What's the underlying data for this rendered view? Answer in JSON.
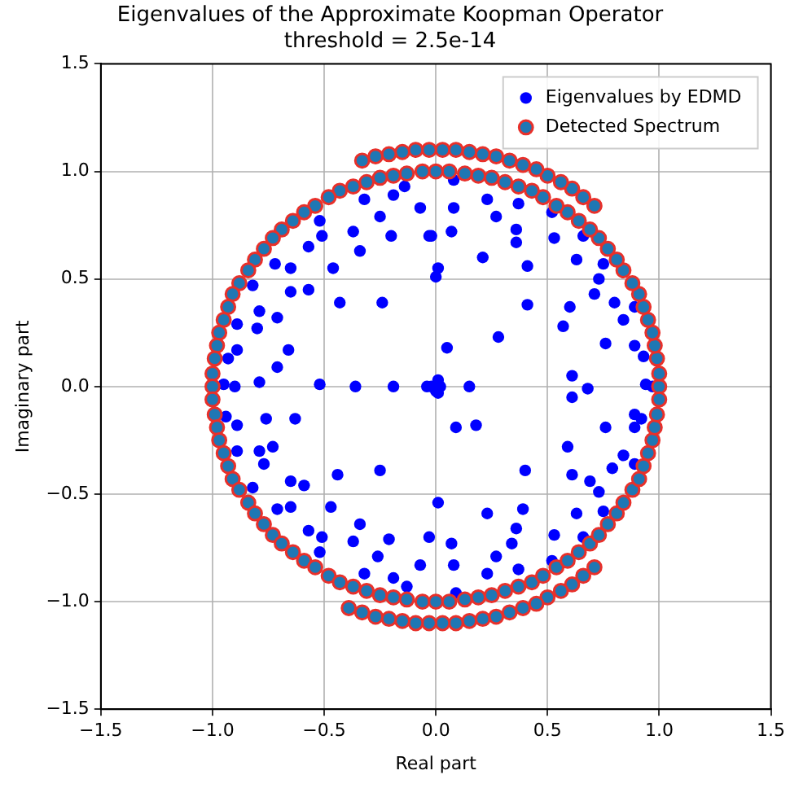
{
  "chart_data": {
    "type": "scatter",
    "title": "Eigenvalues of the Approximate Koopman Operator",
    "subtitle": "threshold = 2.5e-14",
    "xlabel": "Real part",
    "ylabel": "Imaginary part",
    "xlim": [
      -1.5,
      1.5
    ],
    "ylim": [
      -1.5,
      1.5
    ],
    "xticks": [
      {
        "value": -1.5,
        "label": "−1.5"
      },
      {
        "value": -1,
        "label": "−1.0"
      },
      {
        "value": -0.5,
        "label": "−0.5"
      },
      {
        "value": 0,
        "label": "0.0"
      },
      {
        "value": 0.5,
        "label": "0.5"
      },
      {
        "value": 1,
        "label": "1.0"
      },
      {
        "value": 1.5,
        "label": "1.5"
      }
    ],
    "yticks": [
      {
        "value": -1.5,
        "label": "−1.5"
      },
      {
        "value": -1,
        "label": "−1.0"
      },
      {
        "value": -0.5,
        "label": "−0.5"
      },
      {
        "value": 0,
        "label": "0.0"
      },
      {
        "value": 0.5,
        "label": "0.5"
      },
      {
        "value": 1,
        "label": "1.0"
      },
      {
        "value": 1.5,
        "label": "1.5"
      }
    ],
    "grid": true,
    "legend": "top right",
    "marker": "circle",
    "series": [
      {
        "name": "Eigenvalues by EDMD",
        "color": "#0000ff",
        "x": [
          -0.32,
          -0.19,
          -0.14,
          -0.07,
          -0.25,
          -0.52,
          -0.51,
          -0.37,
          -0.2,
          -0.03,
          -0.57,
          -0.34,
          -0.72,
          -0.65,
          -0.46,
          0.01,
          0,
          -0.82,
          -0.65,
          -0.57,
          -0.43,
          -0.24,
          -0.79,
          -0.8,
          -0.71,
          -0.89,
          -0.89,
          -0.93,
          -0.66,
          -0.71,
          -0.95,
          -0.9,
          -0.79,
          -0.52,
          -0.36,
          -0.19,
          -0.04,
          0.01,
          0.08,
          0.08,
          0.23,
          0.37,
          0.27,
          0.52,
          -0.02,
          0.07,
          0.36,
          0.36,
          0.53,
          0.66,
          0.21,
          0.41,
          0.63,
          0.75,
          0.73,
          0.71,
          0.8,
          0.41,
          0.6,
          0.89,
          0.57,
          0.84,
          0.28,
          0.05,
          0.76,
          0.89,
          0.93,
          0.61,
          0.15,
          0.68,
          0.94,
          0.97,
          -0.02,
          0.02,
          0,
          0.01,
          -0.94,
          -0.89,
          -0.76,
          -0.63,
          -0.89,
          -0.79,
          -0.73,
          -0.77,
          -0.44,
          -0.25,
          -0.65,
          -0.59,
          -0.82,
          -0.71,
          -0.65,
          -0.47,
          0.01,
          -0.34,
          -0.57,
          -0.51,
          -0.37,
          -0.21,
          -0.03,
          -0.52,
          -0.26,
          -0.07,
          -0.32,
          -0.19,
          -0.13,
          0.61,
          0.09,
          0.18,
          0.76,
          0.89,
          0.92,
          0.89,
          0.59,
          0.4,
          0.61,
          0.84,
          0.79,
          0.89,
          0.69,
          0.73,
          0.23,
          0.39,
          0.63,
          0.75,
          0.07,
          0.36,
          0.34,
          0.53,
          0.66,
          0.27,
          0.08,
          0.23,
          0.37,
          0.52,
          0.09
        ],
        "values": [
          0.87,
          0.89,
          0.93,
          0.83,
          0.79,
          0.77,
          0.7,
          0.72,
          0.7,
          0.7,
          0.65,
          0.63,
          0.57,
          0.55,
          0.55,
          0.55,
          0.51,
          0.47,
          0.44,
          0.45,
          0.39,
          0.39,
          0.35,
          0.27,
          0.32,
          0.29,
          0.17,
          0.13,
          0.17,
          0.09,
          0.01,
          0,
          0.02,
          0.01,
          0,
          0,
          0,
          0.03,
          0.96,
          0.83,
          0.87,
          0.85,
          0.79,
          0.81,
          0.7,
          0.72,
          0.73,
          0.67,
          0.69,
          0.7,
          0.6,
          0.56,
          0.59,
          0.57,
          0.5,
          0.43,
          0.39,
          0.38,
          0.37,
          0.37,
          0.28,
          0.31,
          0.23,
          0.18,
          0.2,
          0.19,
          0.14,
          0.05,
          0,
          -0.01,
          0.01,
          0,
          0,
          0,
          -0.02,
          -0.03,
          -0.14,
          -0.18,
          -0.15,
          -0.15,
          -0.3,
          -0.3,
          -0.28,
          -0.36,
          -0.41,
          -0.39,
          -0.44,
          -0.46,
          -0.47,
          -0.57,
          -0.56,
          -0.56,
          -0.54,
          -0.64,
          -0.67,
          -0.7,
          -0.72,
          -0.71,
          -0.7,
          -0.77,
          -0.79,
          -0.83,
          -0.87,
          -0.89,
          -0.93,
          -0.05,
          -0.19,
          -0.18,
          -0.19,
          -0.13,
          -0.15,
          -0.19,
          -0.28,
          -0.39,
          -0.41,
          -0.32,
          -0.38,
          -0.36,
          -0.44,
          -0.49,
          -0.59,
          -0.57,
          -0.59,
          -0.58,
          -0.73,
          -0.66,
          -0.73,
          -0.69,
          -0.7,
          -0.79,
          -0.83,
          -0.87,
          -0.85,
          -0.81,
          -0.96
        ]
      },
      {
        "name": "Detected Spectrum",
        "color": "#1f77b4",
        "x": [
          1,
          1,
          0.99,
          0.98,
          0.97,
          0.95,
          0.93,
          0.91,
          0.88,
          0.84,
          0.81,
          0.77,
          0.73,
          0.69,
          0.64,
          0.59,
          0.54,
          0.48,
          0.43,
          0.37,
          0.31,
          0.25,
          0.19,
          0.13,
          0.06,
          0,
          -0.06,
          -0.13,
          -0.19,
          -0.25,
          -0.31,
          -0.37,
          -0.43,
          -0.48,
          -0.54,
          -0.59,
          -0.64,
          -0.69,
          -0.73,
          -0.77,
          -0.81,
          -0.84,
          -0.88,
          -0.91,
          -0.93,
          -0.95,
          -0.97,
          -0.98,
          -0.99,
          -1,
          -1,
          -1,
          -0.99,
          -0.98,
          -0.97,
          -0.95,
          -0.93,
          -0.91,
          -0.88,
          -0.84,
          -0.81,
          -0.77,
          -0.73,
          -0.69,
          -0.64,
          -0.59,
          -0.54,
          -0.48,
          -0.43,
          -0.37,
          -0.31,
          -0.25,
          -0.19,
          -0.13,
          -0.06,
          0,
          0.06,
          0.13,
          0.19,
          0.25,
          0.31,
          0.37,
          0.43,
          0.48,
          0.54,
          0.59,
          0.64,
          0.69,
          0.73,
          0.77,
          0.81,
          0.84,
          0.88,
          0.91,
          0.93,
          0.95,
          0.97,
          0.98,
          0.99,
          1,
          0.71,
          0.66,
          0.61,
          0.56,
          0.5,
          0.45,
          0.39,
          0.33,
          0.27,
          0.21,
          0.15,
          0.09,
          0.03,
          -0.03,
          -0.09,
          -0.15,
          -0.21,
          -0.27,
          -0.33,
          0.71,
          0.66,
          0.61,
          0.56,
          0.5,
          0.45,
          0.39,
          0.33,
          0.27,
          0.21,
          0.15,
          0.09,
          0.03,
          -0.03,
          -0.09,
          -0.15,
          -0.21,
          -0.27,
          -0.33,
          -0.39
        ],
        "values": [
          0,
          0.06,
          0.13,
          0.19,
          0.25,
          0.31,
          0.37,
          0.43,
          0.48,
          0.54,
          0.59,
          0.64,
          0.69,
          0.73,
          0.77,
          0.81,
          0.84,
          0.88,
          0.91,
          0.93,
          0.95,
          0.97,
          0.98,
          0.99,
          1,
          1,
          1,
          0.99,
          0.98,
          0.97,
          0.95,
          0.93,
          0.91,
          0.88,
          0.84,
          0.81,
          0.77,
          0.73,
          0.69,
          0.64,
          0.59,
          0.54,
          0.48,
          0.43,
          0.37,
          0.31,
          0.25,
          0.19,
          0.13,
          0.06,
          0,
          -0.06,
          -0.13,
          -0.19,
          -0.25,
          -0.31,
          -0.37,
          -0.43,
          -0.48,
          -0.54,
          -0.59,
          -0.64,
          -0.69,
          -0.73,
          -0.77,
          -0.81,
          -0.84,
          -0.88,
          -0.91,
          -0.93,
          -0.95,
          -0.97,
          -0.98,
          -0.99,
          -1,
          -1,
          -1,
          -0.99,
          -0.98,
          -0.97,
          -0.95,
          -0.93,
          -0.91,
          -0.88,
          -0.84,
          -0.81,
          -0.77,
          -0.73,
          -0.69,
          -0.64,
          -0.59,
          -0.54,
          -0.48,
          -0.43,
          -0.37,
          -0.31,
          -0.25,
          -0.19,
          -0.13,
          -0.06,
          0.84,
          0.88,
          0.92,
          0.95,
          0.98,
          1.01,
          1.03,
          1.05,
          1.07,
          1.08,
          1.09,
          1.1,
          1.1,
          1.1,
          1.1,
          1.09,
          1.08,
          1.07,
          1.05,
          -0.84,
          -0.88,
          -0.92,
          -0.95,
          -0.98,
          -1.01,
          -1.03,
          -1.05,
          -1.07,
          -1.08,
          -1.09,
          -1.1,
          -1.1,
          -1.1,
          -1.1,
          -1.09,
          -1.08,
          -1.07,
          -1.05,
          -1.03
        ]
      }
    ]
  }
}
